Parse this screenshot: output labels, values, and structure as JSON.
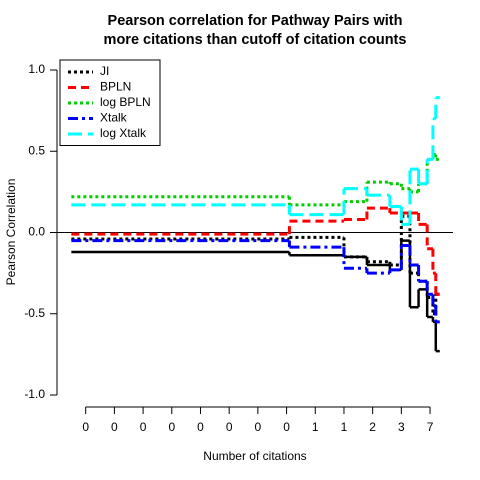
{
  "chart_data": {
    "type": "step",
    "title": [
      "Pearson correlation for Pathway Pairs with",
      "more citations than cutoff of citation counts"
    ],
    "xlabel": "Number of citations",
    "ylabel": "Pearson Correlation",
    "x": [
      0.5,
      8.1,
      10.0,
      10.8,
      11.6,
      12.0,
      12.3,
      12.6,
      12.9,
      13.1,
      13.2
    ],
    "series": [
      {
        "color": "#000000",
        "linestyle": "solid",
        "values": [
          -0.12,
          -0.14,
          -0.15,
          -0.2,
          -0.23,
          -0.05,
          -0.46,
          -0.35,
          -0.52,
          -0.55,
          -0.73
        ]
      },
      {
        "name": "JI",
        "color": "#000000",
        "linestyle": "dotted",
        "values": [
          -0.04,
          -0.03,
          -0.15,
          -0.18,
          -0.2,
          0.1,
          -0.25,
          -0.3,
          -0.4,
          -0.5,
          -0.38
        ]
      },
      {
        "name": "BPLN",
        "color": "#ff0000",
        "linestyle": "dashed",
        "values": [
          -0.01,
          0.07,
          0.08,
          0.15,
          0.12,
          0.12,
          0.12,
          0.05,
          -0.1,
          -0.25,
          -0.38
        ]
      },
      {
        "name": "log BPLN",
        "color": "#00cd00",
        "linestyle": "dotted",
        "values": [
          0.22,
          0.17,
          0.19,
          0.31,
          0.3,
          0.27,
          0.25,
          0.3,
          0.45,
          0.48,
          0.45
        ]
      },
      {
        "name": "Xtalk",
        "color": "#0000ff",
        "linestyle": "dotdash",
        "values": [
          -0.05,
          -0.09,
          -0.22,
          -0.25,
          -0.23,
          -0.08,
          -0.2,
          -0.3,
          -0.38,
          -0.45,
          -0.55
        ]
      },
      {
        "name": "log Xtalk",
        "color": "#00ffff",
        "linestyle": "longdash",
        "values": [
          0.17,
          0.11,
          0.27,
          0.23,
          0.16,
          0.05,
          0.39,
          0.3,
          0.45,
          0.7,
          0.83
        ]
      }
    ],
    "xlim": [
      0,
      13.8
    ],
    "ylim": [
      -1.08,
      1.08
    ],
    "xticks": [
      {
        "value": 1,
        "label": "0"
      },
      {
        "value": 2,
        "label": "0"
      },
      {
        "value": 3,
        "label": "0"
      },
      {
        "value": 4,
        "label": "0"
      },
      {
        "value": 5,
        "label": "0"
      },
      {
        "value": 6,
        "label": "0"
      },
      {
        "value": 7,
        "label": "0"
      },
      {
        "value": 8,
        "label": "0"
      },
      {
        "value": 9,
        "label": "1"
      },
      {
        "value": 10,
        "label": "1"
      },
      {
        "value": 11,
        "label": "2"
      },
      {
        "value": 12,
        "label": "3"
      },
      {
        "value": 13,
        "label": "7"
      }
    ],
    "yticks": [
      {
        "value": 1,
        "label": "1.0"
      },
      0.5,
      {
        "value": 0,
        "label": "0.0"
      },
      -0.5,
      {
        "value": -1,
        "label": "-1.0"
      }
    ],
    "hline": 0,
    "legend": "top-left"
  }
}
